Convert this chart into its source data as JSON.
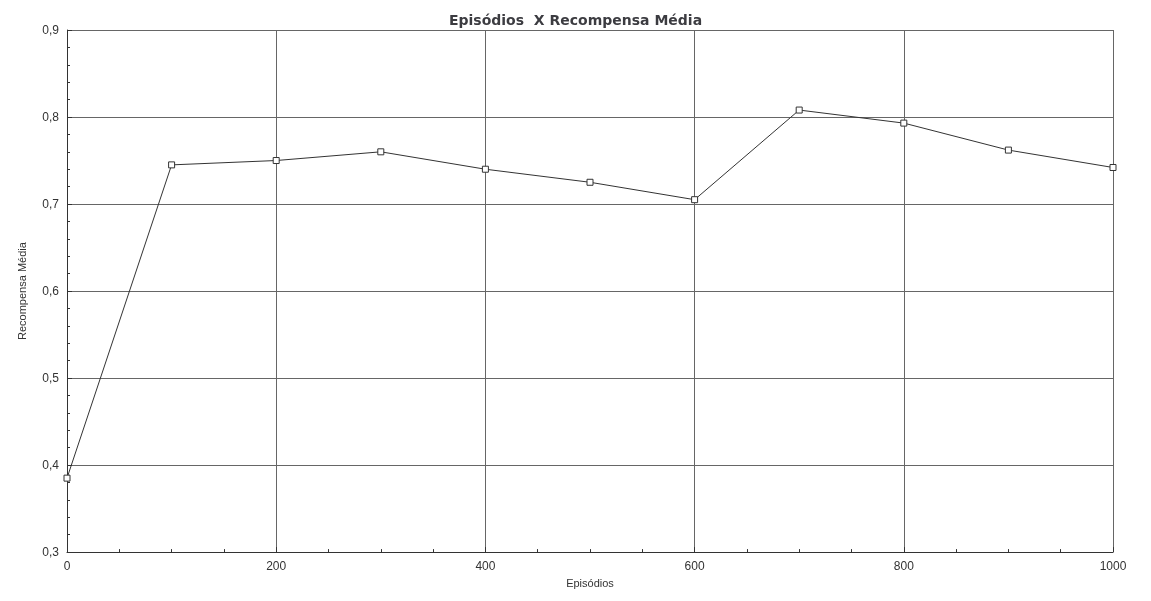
{
  "chart_data": {
    "type": "line",
    "title": "Episódios  X Recompensa Média",
    "xlabel": "Episódios",
    "ylabel": "Recompensa Média",
    "x": [
      0,
      100,
      200,
      300,
      400,
      500,
      600,
      700,
      800,
      900,
      1000
    ],
    "series": [
      {
        "color": "#333333",
        "values": [
          0.385,
          0.745,
          0.75,
          0.76,
          0.74,
          0.725,
          0.705,
          0.808,
          0.793,
          0.762,
          0.742
        ]
      }
    ],
    "xlim": [
      0,
      1000
    ],
    "xticks": [
      0,
      200,
      400,
      600,
      800,
      1000
    ],
    "ylim": [
      0.3,
      0.9
    ],
    "yticks": [
      {
        "value": 0.3,
        "label": "0,3"
      },
      {
        "value": 0.4,
        "label": "0,4"
      },
      {
        "value": 0.5,
        "label": "0,5"
      },
      {
        "value": 0.6,
        "label": "0,6"
      },
      {
        "value": 0.7,
        "label": "0,7"
      },
      {
        "value": 0.8,
        "label": "0,8"
      },
      {
        "value": 0.9,
        "label": "0,9"
      }
    ],
    "grid": true,
    "marker": "square",
    "line_style": "solid"
  }
}
